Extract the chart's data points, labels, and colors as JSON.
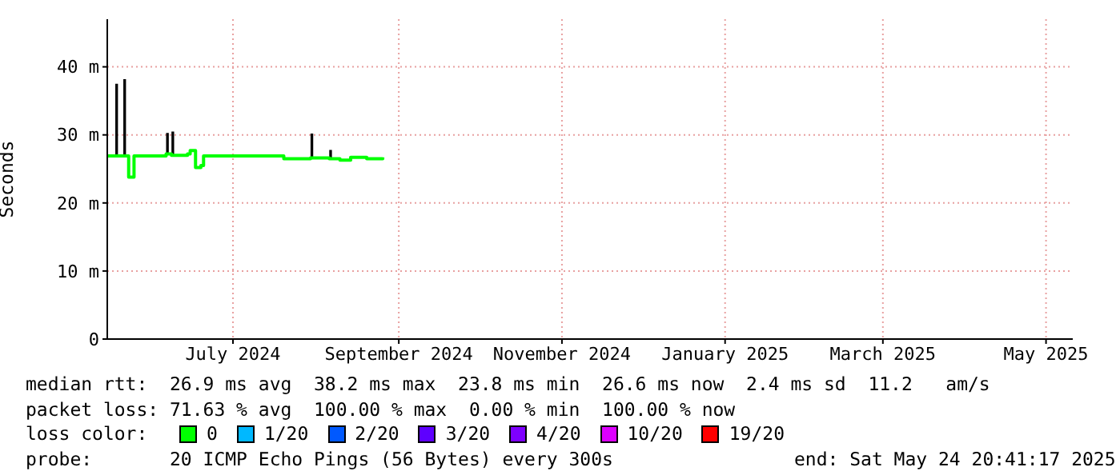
{
  "chart_data": {
    "type": "step",
    "ylabel": "Seconds",
    "x": [
      "2024-05-15",
      "2024-05-18",
      "2024-05-19",
      "2024-05-21",
      "2024-05-22",
      "2024-05-23",
      "2024-05-25",
      "2024-06-04",
      "2024-06-06",
      "2024-06-07",
      "2024-06-08",
      "2024-06-09",
      "2024-06-14",
      "2024-06-15",
      "2024-06-17",
      "2024-06-19",
      "2024-06-20",
      "2024-07-16",
      "2024-07-20",
      "2024-07-30",
      "2024-07-31",
      "2024-08-06",
      "2024-08-07",
      "2024-08-10",
      "2024-08-14",
      "2024-08-20",
      "2024-08-26"
    ],
    "series": [
      {
        "name": "0",
        "color": "#00ff00",
        "values": [
          26.9,
          26.9,
          26.9,
          26.9,
          26.9,
          23.8,
          26.9,
          26.9,
          27.2,
          27.2,
          27,
          27,
          27.2,
          27.7,
          25.2,
          25.5,
          26.9,
          26.9,
          26.5,
          26.6,
          26.6,
          26.5,
          26.5,
          26.3,
          26.7,
          26.5,
          26.7
        ],
        "lower": [
          26.9,
          26.9,
          26.9,
          26.9,
          26.9,
          23.8,
          26.9,
          26.9,
          27.2,
          27.2,
          27,
          27,
          27.2,
          27.7,
          25.2,
          25.5,
          26.9,
          26.9,
          26.5,
          26.6,
          26.6,
          26.5,
          26.5,
          26.3,
          26.7,
          26.5,
          26.7
        ],
        "upper": [
          26.9,
          37.5,
          26.9,
          38.2,
          26.9,
          23.8,
          26.9,
          26.9,
          30.3,
          27.2,
          30.5,
          27,
          27.2,
          27.7,
          25.2,
          25.5,
          26.9,
          26.9,
          26.5,
          30.2,
          26.6,
          27.8,
          26.5,
          26.3,
          26.7,
          26.5,
          26.7
        ]
      },
      {
        "name": "1/20",
        "color": "#00b8ff",
        "values": [
          null,
          null,
          null,
          null,
          null,
          null,
          null,
          null,
          null,
          null,
          null,
          null,
          null,
          null,
          null,
          null,
          null,
          null,
          null,
          null,
          null,
          null,
          null,
          null,
          null,
          null,
          null
        ]
      },
      {
        "name": "2/20",
        "color": "#0059ff",
        "values": [
          null,
          null,
          null,
          null,
          null,
          null,
          null,
          null,
          null,
          null,
          null,
          null,
          null,
          null,
          null,
          null,
          null,
          null,
          null,
          null,
          null,
          null,
          null,
          null,
          null,
          null,
          null
        ]
      },
      {
        "name": "3/20",
        "color": "#5e00ff",
        "values": [
          null,
          null,
          null,
          null,
          null,
          null,
          null,
          null,
          null,
          null,
          null,
          null,
          null,
          null,
          null,
          null,
          null,
          null,
          null,
          null,
          null,
          null,
          null,
          null,
          null,
          null,
          null
        ]
      },
      {
        "name": "4/20",
        "color": "#7e00ff",
        "values": [
          null,
          null,
          null,
          null,
          null,
          null,
          null,
          null,
          null,
          null,
          null,
          null,
          null,
          null,
          null,
          null,
          null,
          null,
          null,
          null,
          null,
          null,
          null,
          null,
          null,
          null,
          null
        ]
      },
      {
        "name": "10/20",
        "color": "#dd00ff",
        "values": [
          null,
          null,
          null,
          null,
          null,
          null,
          null,
          null,
          null,
          null,
          null,
          null,
          null,
          null,
          null,
          null,
          null,
          null,
          null,
          null,
          null,
          null,
          null,
          null,
          null,
          null,
          null
        ]
      },
      {
        "name": "19/20",
        "color": "#ff0000",
        "values": [
          null,
          null,
          null,
          null,
          null,
          null,
          null,
          null,
          null,
          null,
          null,
          null,
          null,
          null,
          null,
          null,
          null,
          null,
          null,
          null,
          null,
          null,
          null,
          null,
          null,
          null,
          null
        ]
      }
    ],
    "legend_title": "loss color:",
    "legend": "bottom",
    "xlim": [
      "2024-05-15",
      "2025-05-11"
    ],
    "xticks": [
      {
        "value": "2024-07-01",
        "label": "July 2024"
      },
      {
        "value": "2024-09-01",
        "label": "September 2024"
      },
      {
        "value": "2024-11-01",
        "label": "November 2024"
      },
      {
        "value": "2025-01-01",
        "label": "January 2025"
      },
      {
        "value": "2025-03-01",
        "label": "March 2025"
      },
      {
        "value": "2025-05-01",
        "label": "May 2025"
      }
    ],
    "ylim": [
      0,
      47
    ],
    "yticks": [
      0,
      {
        "value": 10,
        "label": "10 m"
      },
      {
        "value": 20,
        "label": "20 m"
      },
      {
        "value": 30,
        "label": "30 m"
      },
      {
        "value": 40,
        "label": "40 m"
      }
    ],
    "grid": true,
    "marker": "none",
    "line_style": "solid",
    "annotations": [
      "median rtt:  26.9 ms avg  38.2 ms max  23.8 ms min  26.6 ms now  2.4 ms sd  11.2   am/s",
      "packet loss: 71.63 % avg  100.00 % max  0.00 % min  100.00 % now",
      "probe:       20 ICMP Echo Pings (56 Bytes) every 300s",
      "end: Sat May 24 20:41:17 2025"
    ]
  }
}
